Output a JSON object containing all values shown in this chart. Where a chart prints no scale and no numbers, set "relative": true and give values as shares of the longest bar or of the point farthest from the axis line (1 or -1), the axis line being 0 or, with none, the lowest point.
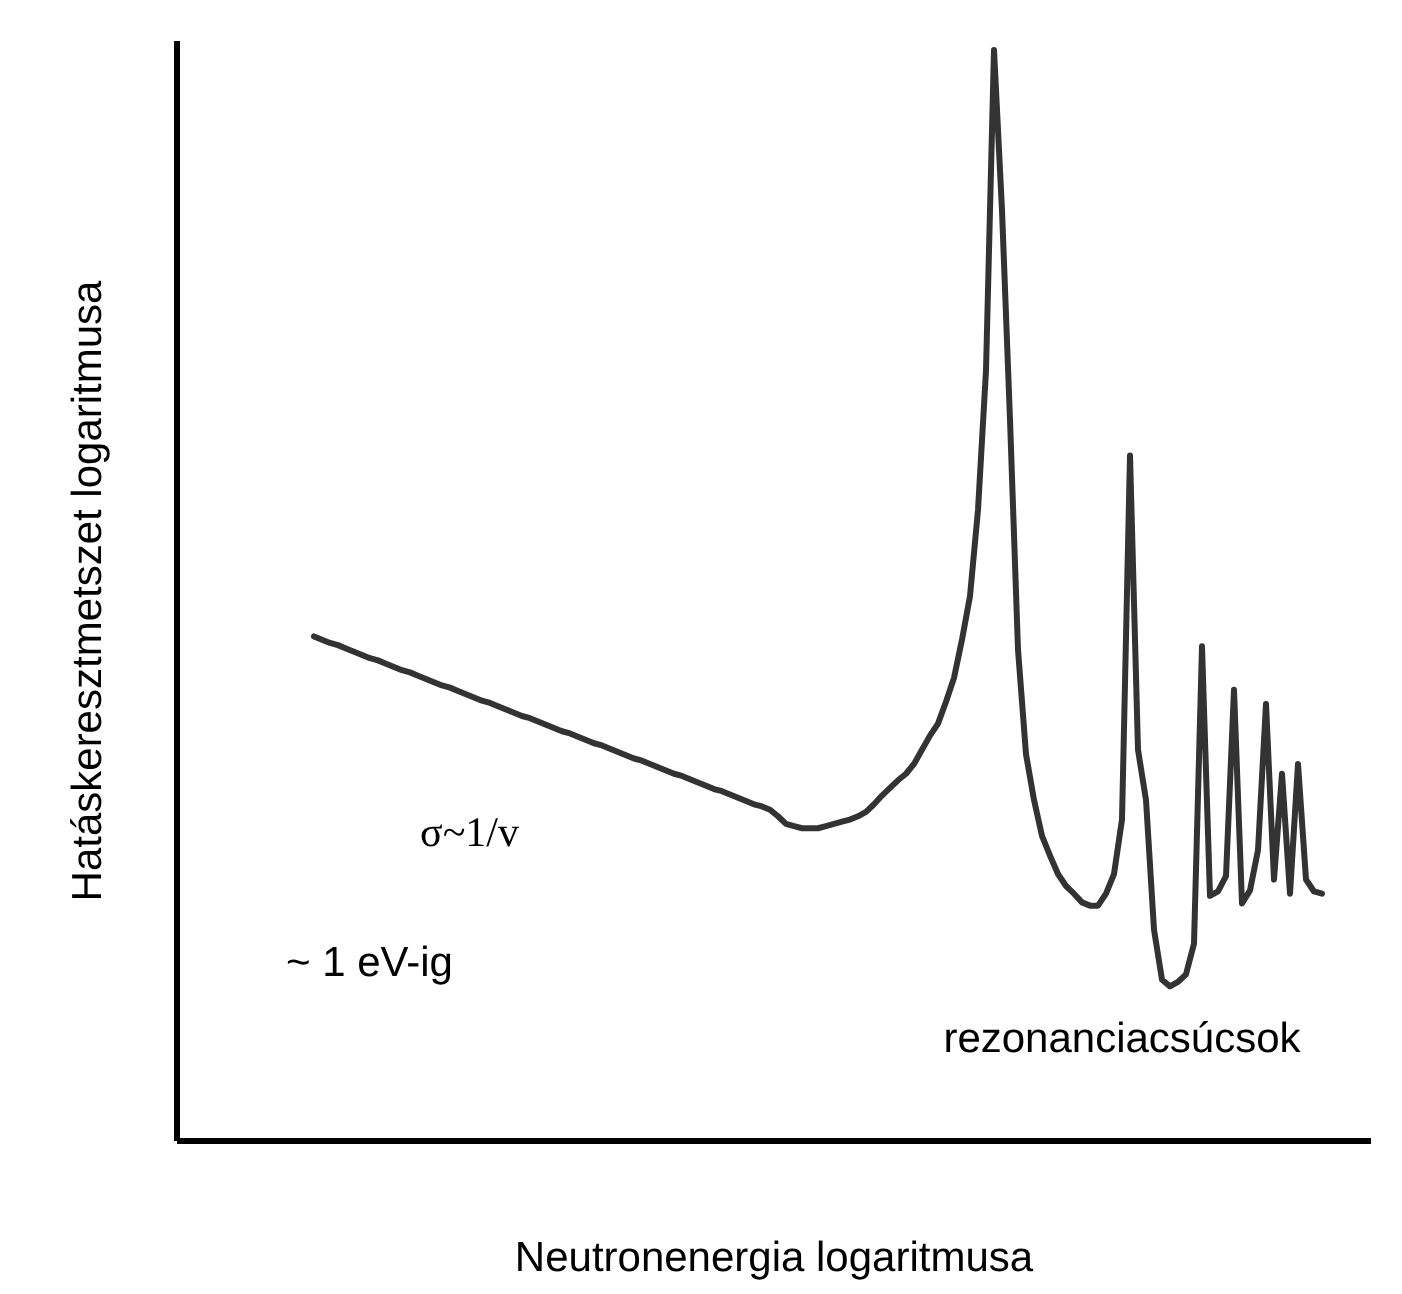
{
  "chart_data": {
    "type": "line",
    "relative": true,
    "xlabel": "Neutronenergia logaritmusa",
    "ylabel": "Hatáskeresztmetszet  logaritmusa",
    "annotations": [
      "σ~1/v",
      "~ 1 eV-ig",
      "rezonanciacsúcsok"
    ],
    "categories": [
      null,
      null,
      null,
      null,
      null,
      null,
      null,
      null,
      null,
      null,
      null,
      null,
      null,
      null,
      null,
      null,
      null,
      null,
      null,
      null,
      null,
      null,
      null,
      null,
      null,
      null,
      null,
      null,
      null,
      null,
      null,
      null,
      null,
      null,
      null,
      null,
      null,
      null,
      null,
      null,
      null,
      null,
      null,
      null,
      null,
      null,
      null,
      null,
      null,
      null,
      null,
      null,
      null,
      null,
      null,
      null,
      null,
      null,
      null,
      null,
      null,
      null,
      null,
      null,
      null,
      null,
      null,
      null,
      null,
      null,
      null,
      null,
      null,
      null,
      null,
      null,
      null,
      null,
      null,
      null,
      null,
      null,
      null,
      null,
      null,
      null,
      null,
      null,
      null,
      null,
      null,
      null,
      null,
      null,
      null,
      null,
      null,
      null,
      null,
      null,
      null,
      null,
      null,
      null,
      null,
      null,
      null,
      null,
      null,
      null,
      null,
      null,
      null,
      null,
      null,
      null,
      null,
      null,
      null,
      null,
      null,
      null,
      null,
      null,
      null,
      null,
      null
    ],
    "series": [
      {
        "color": "#333333",
        "values": [
          0.462,
          0.459,
          0.456,
          0.454,
          0.451,
          0.448,
          0.445,
          0.442,
          0.44,
          0.437,
          0.434,
          0.431,
          0.429,
          0.426,
          0.423,
          0.42,
          0.417,
          0.415,
          0.412,
          0.409,
          0.406,
          0.403,
          0.401,
          0.398,
          0.395,
          0.392,
          0.389,
          0.387,
          0.384,
          0.381,
          0.378,
          0.375,
          0.373,
          0.37,
          0.367,
          0.364,
          0.362,
          0.359,
          0.356,
          0.353,
          0.35,
          0.348,
          0.345,
          0.342,
          0.339,
          0.336,
          0.334,
          0.331,
          0.328,
          0.325,
          0.322,
          0.32,
          0.317,
          0.314,
          0.311,
          0.308,
          0.306,
          0.303,
          0.297,
          0.29,
          0.288,
          0.286,
          0.286,
          0.286,
          0.288,
          0.29,
          0.292,
          0.294,
          0.297,
          0.301,
          0.308,
          0.316,
          0.323,
          0.33,
          0.336,
          0.345,
          0.358,
          0.371,
          0.382,
          0.402,
          0.424,
          0.459,
          0.499,
          0.578,
          0.706,
          1,
          0.853,
          0.661,
          0.45,
          0.354,
          0.312,
          0.279,
          0.261,
          0.244,
          0.233,
          0.226,
          0.218,
          0.215,
          0.215,
          0.226,
          0.244,
          0.294,
          0.628,
          0.358,
          0.312,
          0.193,
          0.147,
          0.141,
          0.145,
          0.152,
          0.18,
          0.453,
          0.224,
          0.228,
          0.242,
          0.413,
          0.217,
          0.229,
          0.266,
          0.4,
          0.239,
          0.336,
          0.226,
          0.345,
          0.239,
          0.228,
          0.226
        ]
      }
    ],
    "marker": "none",
    "line_style": "solid"
  }
}
